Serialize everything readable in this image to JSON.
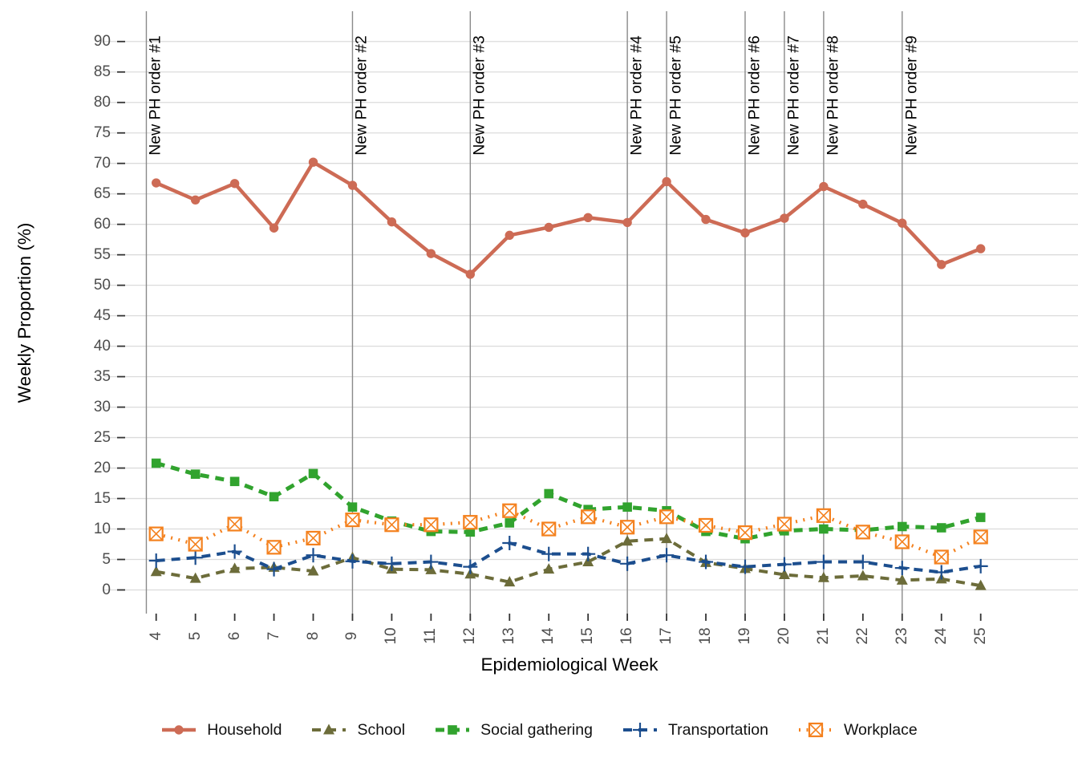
{
  "chart_data": {
    "type": "line",
    "title": "",
    "xlabel": "Epidemiological Week",
    "ylabel": "Weekly Proportion (%)",
    "x": [
      4,
      5,
      6,
      7,
      8,
      9,
      10,
      11,
      12,
      13,
      14,
      15,
      16,
      17,
      18,
      19,
      20,
      21,
      22,
      23,
      24,
      25
    ],
    "yticks": [
      0,
      5,
      10,
      15,
      20,
      25,
      30,
      35,
      40,
      45,
      50,
      55,
      60,
      65,
      70,
      75,
      80,
      85,
      90
    ],
    "ylim": [
      -3,
      95
    ],
    "grid": "horizontal-major-only",
    "legend_position": "bottom",
    "series": [
      {
        "name": "Household",
        "marker": "circle",
        "linestyle": "solid",
        "color": "#CD6B55",
        "values": [
          66.8,
          64.0,
          66.7,
          59.4,
          70.2,
          66.4,
          60.4,
          55.2,
          51.8,
          58.2,
          59.5,
          61.1,
          60.3,
          67.0,
          60.8,
          58.6,
          61.0,
          66.2,
          63.3,
          60.2,
          53.4,
          56.0
        ]
      },
      {
        "name": "School",
        "marker": "triangle",
        "linestyle": "dashed",
        "color": "#6C6C3A",
        "values": [
          3.0,
          1.9,
          3.5,
          3.7,
          3.1,
          5.3,
          3.4,
          3.3,
          2.6,
          1.3,
          3.4,
          4.6,
          8.0,
          8.4,
          4.5,
          3.5,
          2.5,
          2.0,
          2.3,
          1.6,
          1.8,
          0.7
        ]
      },
      {
        "name": "Social gathering",
        "marker": "square",
        "linestyle": "dashed",
        "color": "#31A32E",
        "values": [
          20.8,
          19.0,
          17.8,
          15.3,
          19.1,
          13.6,
          11.3,
          9.6,
          9.5,
          11.0,
          15.8,
          13.2,
          13.6,
          13.0,
          9.6,
          8.4,
          9.7,
          10.0,
          9.8,
          10.4,
          10.2,
          11.9
        ]
      },
      {
        "name": "Transportation",
        "marker": "plus",
        "linestyle": "dashed",
        "color": "#1C4E8E",
        "values": [
          4.8,
          5.3,
          6.3,
          3.4,
          5.7,
          4.7,
          4.3,
          4.6,
          3.8,
          7.7,
          5.9,
          5.9,
          4.3,
          5.7,
          4.6,
          3.8,
          4.2,
          4.6,
          4.6,
          3.6,
          2.9,
          3.9
        ]
      },
      {
        "name": "Workplace",
        "marker": "crossed-square",
        "linestyle": "dotted",
        "color": "#F4811E",
        "values": [
          9.2,
          7.5,
          10.8,
          7.0,
          8.5,
          11.5,
          10.7,
          10.7,
          11.1,
          13.0,
          10.0,
          12.0,
          10.3,
          12.0,
          10.6,
          9.4,
          10.8,
          12.2,
          9.5,
          7.9,
          5.4,
          8.7
        ]
      }
    ],
    "annotations": [
      {
        "label": "New PH order #1",
        "week": 3.75
      },
      {
        "label": "New PH order #2",
        "week": 9
      },
      {
        "label": "New PH order #3",
        "week": 12
      },
      {
        "label": "New PH order #4",
        "week": 16
      },
      {
        "label": "New PH order #5",
        "week": 17
      },
      {
        "label": "New PH order #6",
        "week": 19
      },
      {
        "label": "New PH order #7",
        "week": 20
      },
      {
        "label": "New PH order #8",
        "week": 21
      },
      {
        "label": "New PH order #9",
        "week": 23
      }
    ],
    "colors": {
      "grid": "#DBDBDB",
      "annotation_line": "#8A8A8A",
      "axis_text": "#4D4D4D",
      "tick_mark": "#333333",
      "axis_title": "#000000"
    }
  }
}
